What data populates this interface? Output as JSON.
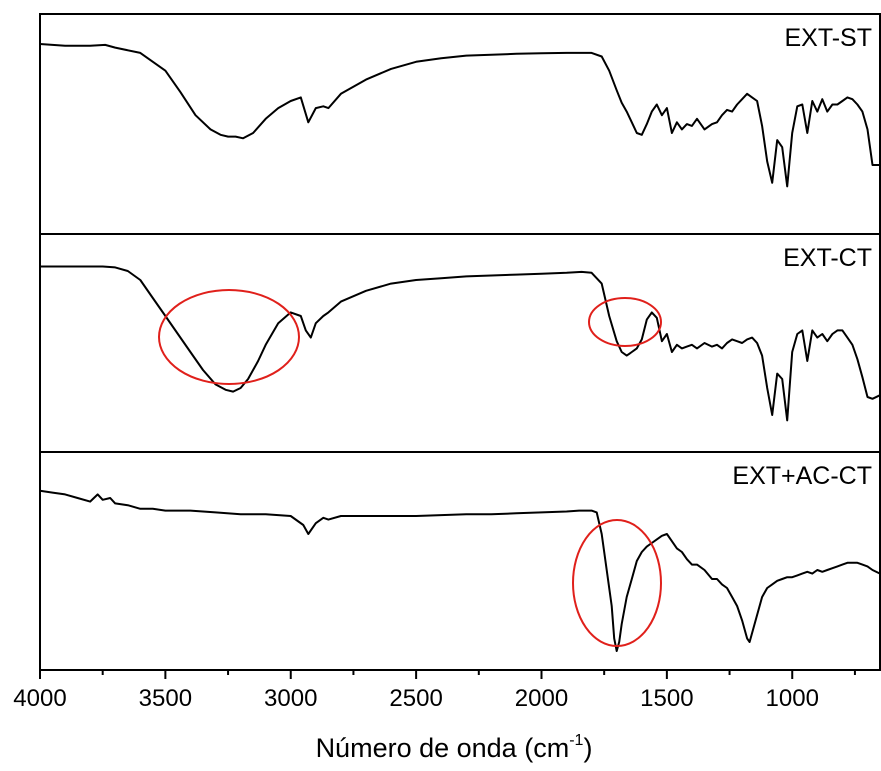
{
  "chart_data": {
    "type": "line",
    "xlabel": "Número de onda",
    "xlabel_unit_base": "cm",
    "xlabel_unit_exp": "-1",
    "xlim": [
      4000,
      650
    ],
    "xticks": [
      4000,
      3500,
      3000,
      2500,
      2000,
      1500,
      1000
    ],
    "xtick_labels": [
      "4000",
      "3500",
      "3000",
      "2500",
      "2000",
      "1500",
      "1000"
    ],
    "panels": [
      {
        "name": "EXT-ST",
        "x": [
          4000,
          3900,
          3800,
          3740,
          3700,
          3600,
          3500,
          3440,
          3380,
          3320,
          3280,
          3250,
          3220,
          3190,
          3150,
          3100,
          3050,
          3000,
          2960,
          2930,
          2900,
          2870,
          2850,
          2800,
          2700,
          2600,
          2500,
          2400,
          2300,
          2200,
          2100,
          2000,
          1900,
          1850,
          1800,
          1760,
          1730,
          1700,
          1680,
          1660,
          1640,
          1620,
          1600,
          1580,
          1560,
          1540,
          1520,
          1500,
          1480,
          1460,
          1440,
          1420,
          1400,
          1380,
          1350,
          1320,
          1300,
          1280,
          1260,
          1240,
          1220,
          1200,
          1180,
          1160,
          1140,
          1120,
          1100,
          1080,
          1060,
          1040,
          1020,
          1000,
          980,
          960,
          940,
          920,
          900,
          880,
          860,
          840,
          820,
          800,
          780,
          760,
          740,
          720,
          700,
          680,
          650
        ],
        "y": [
          1.0,
          0.99,
          0.99,
          0.995,
          0.98,
          0.95,
          0.85,
          0.73,
          0.6,
          0.52,
          0.49,
          0.48,
          0.48,
          0.47,
          0.5,
          0.58,
          0.64,
          0.68,
          0.7,
          0.56,
          0.64,
          0.65,
          0.64,
          0.72,
          0.8,
          0.86,
          0.9,
          0.92,
          0.935,
          0.94,
          0.945,
          0.948,
          0.95,
          0.95,
          0.95,
          0.93,
          0.85,
          0.74,
          0.67,
          0.62,
          0.56,
          0.5,
          0.49,
          0.55,
          0.62,
          0.66,
          0.6,
          0.64,
          0.5,
          0.56,
          0.52,
          0.55,
          0.54,
          0.58,
          0.52,
          0.55,
          0.56,
          0.6,
          0.63,
          0.62,
          0.66,
          0.69,
          0.72,
          0.7,
          0.68,
          0.54,
          0.34,
          0.22,
          0.46,
          0.42,
          0.2,
          0.5,
          0.65,
          0.66,
          0.5,
          0.68,
          0.62,
          0.69,
          0.62,
          0.66,
          0.66,
          0.68,
          0.7,
          0.69,
          0.66,
          0.62,
          0.52,
          0.32,
          0.32
        ]
      },
      {
        "name": "EXT-CT",
        "x": [
          4000,
          3900,
          3800,
          3750,
          3700,
          3650,
          3600,
          3550,
          3500,
          3450,
          3400,
          3350,
          3300,
          3260,
          3230,
          3200,
          3170,
          3130,
          3100,
          3050,
          3000,
          2960,
          2940,
          2920,
          2900,
          2870,
          2850,
          2800,
          2700,
          2600,
          2500,
          2400,
          2300,
          2200,
          2100,
          2000,
          1900,
          1840,
          1800,
          1760,
          1730,
          1700,
          1680,
          1660,
          1650,
          1640,
          1620,
          1600,
          1580,
          1560,
          1540,
          1520,
          1500,
          1480,
          1460,
          1440,
          1420,
          1400,
          1380,
          1350,
          1320,
          1300,
          1280,
          1260,
          1240,
          1220,
          1200,
          1180,
          1160,
          1140,
          1120,
          1100,
          1080,
          1060,
          1040,
          1020,
          1000,
          980,
          960,
          940,
          920,
          900,
          880,
          860,
          840,
          820,
          800,
          780,
          760,
          740,
          720,
          700,
          680,
          650
        ],
        "y": [
          0.975,
          0.975,
          0.975,
          0.975,
          0.97,
          0.95,
          0.9,
          0.8,
          0.7,
          0.6,
          0.5,
          0.4,
          0.32,
          0.29,
          0.28,
          0.3,
          0.35,
          0.45,
          0.54,
          0.66,
          0.72,
          0.7,
          0.62,
          0.58,
          0.66,
          0.7,
          0.72,
          0.78,
          0.84,
          0.88,
          0.9,
          0.91,
          0.92,
          0.925,
          0.93,
          0.935,
          0.94,
          0.945,
          0.94,
          0.88,
          0.7,
          0.56,
          0.5,
          0.48,
          0.49,
          0.5,
          0.52,
          0.57,
          0.68,
          0.72,
          0.69,
          0.56,
          0.6,
          0.5,
          0.54,
          0.52,
          0.53,
          0.54,
          0.52,
          0.55,
          0.53,
          0.54,
          0.52,
          0.55,
          0.57,
          0.56,
          0.55,
          0.57,
          0.58,
          0.55,
          0.48,
          0.3,
          0.15,
          0.38,
          0.35,
          0.12,
          0.5,
          0.6,
          0.62,
          0.45,
          0.62,
          0.58,
          0.6,
          0.56,
          0.6,
          0.62,
          0.62,
          0.58,
          0.54,
          0.46,
          0.36,
          0.25,
          0.24,
          0.26
        ]
      },
      {
        "name": "EXT+AC-CT",
        "x": [
          4000,
          3950,
          3900,
          3850,
          3800,
          3770,
          3750,
          3720,
          3700,
          3650,
          3600,
          3550,
          3500,
          3400,
          3300,
          3200,
          3100,
          3000,
          2950,
          2930,
          2900,
          2870,
          2850,
          2800,
          2700,
          2600,
          2500,
          2400,
          2300,
          2200,
          2100,
          2000,
          1900,
          1850,
          1800,
          1780,
          1760,
          1740,
          1720,
          1710,
          1700,
          1690,
          1680,
          1660,
          1640,
          1620,
          1600,
          1580,
          1560,
          1540,
          1520,
          1500,
          1480,
          1460,
          1440,
          1420,
          1400,
          1380,
          1350,
          1320,
          1300,
          1280,
          1260,
          1240,
          1220,
          1200,
          1180,
          1170,
          1160,
          1140,
          1120,
          1100,
          1080,
          1060,
          1040,
          1020,
          1000,
          980,
          960,
          940,
          920,
          900,
          880,
          860,
          840,
          820,
          800,
          780,
          760,
          740,
          720,
          700,
          680,
          650
        ],
        "y": [
          0.94,
          0.93,
          0.92,
          0.9,
          0.88,
          0.92,
          0.89,
          0.9,
          0.87,
          0.86,
          0.84,
          0.84,
          0.83,
          0.83,
          0.82,
          0.81,
          0.81,
          0.8,
          0.75,
          0.7,
          0.76,
          0.79,
          0.78,
          0.8,
          0.8,
          0.8,
          0.8,
          0.805,
          0.81,
          0.81,
          0.815,
          0.82,
          0.825,
          0.83,
          0.83,
          0.82,
          0.7,
          0.5,
          0.3,
          0.12,
          0.05,
          0.1,
          0.2,
          0.35,
          0.45,
          0.55,
          0.6,
          0.63,
          0.65,
          0.67,
          0.69,
          0.7,
          0.66,
          0.62,
          0.6,
          0.56,
          0.53,
          0.53,
          0.5,
          0.45,
          0.45,
          0.42,
          0.4,
          0.35,
          0.3,
          0.22,
          0.12,
          0.1,
          0.15,
          0.25,
          0.35,
          0.4,
          0.42,
          0.44,
          0.45,
          0.46,
          0.46,
          0.47,
          0.48,
          0.49,
          0.48,
          0.5,
          0.49,
          0.5,
          0.51,
          0.52,
          0.53,
          0.54,
          0.54,
          0.54,
          0.53,
          0.52,
          0.5,
          0.48
        ]
      }
    ]
  },
  "annotation_color": "#e0201b",
  "line_color": "#000000"
}
